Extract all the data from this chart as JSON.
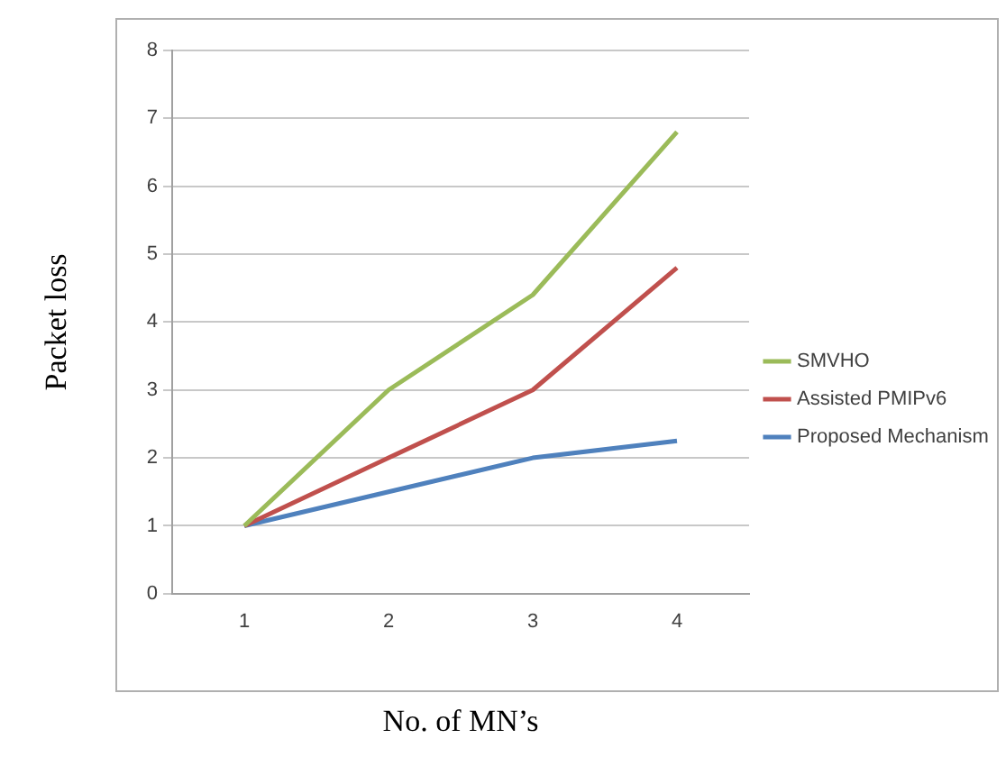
{
  "chart_data": {
    "type": "line",
    "xlabel": "No. of MN’s",
    "ylabel": "Packet loss",
    "categories": [
      "1",
      "2",
      "3",
      "4"
    ],
    "series": [
      {
        "name": "SMVHO",
        "color": "#9bbb59",
        "values": [
          1,
          3,
          4.4,
          6.8
        ]
      },
      {
        "name": "Assisted PMIPv6",
        "color": "#c0504d",
        "values": [
          1,
          2,
          3,
          4.8
        ]
      },
      {
        "name": "Proposed Mechanism",
        "color": "#4f81bd",
        "values": [
          1,
          1.5,
          2,
          2.25
        ]
      }
    ],
    "ylim": [
      0,
      8
    ],
    "yticks": [
      0,
      1,
      2,
      3,
      4,
      5,
      6,
      7,
      8
    ],
    "grid": "y",
    "legend": "right",
    "marker": "none",
    "line_style": "solid"
  }
}
